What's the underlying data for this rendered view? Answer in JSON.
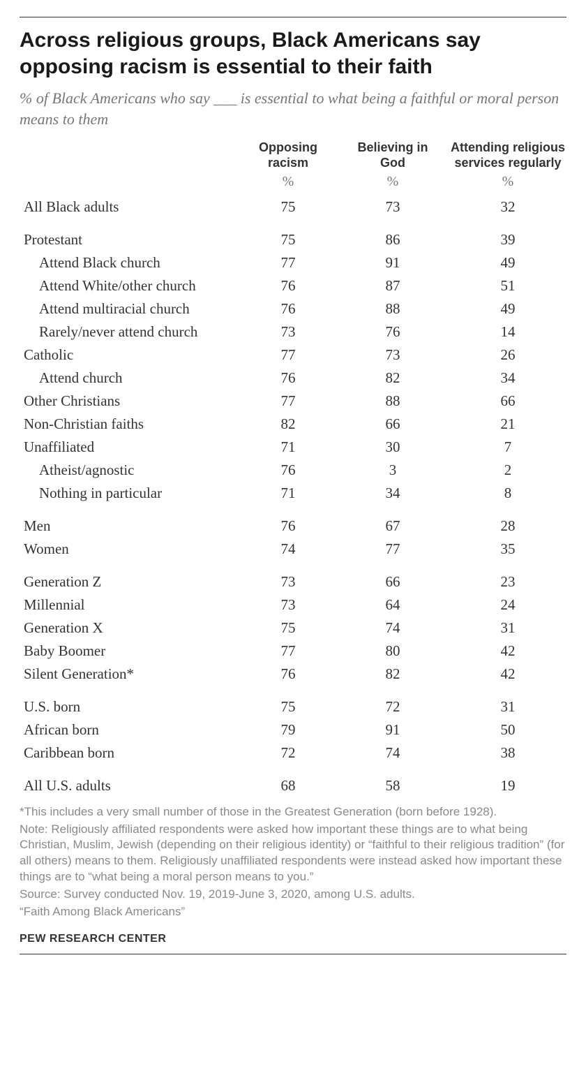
{
  "title": "Across religious groups, Black Americans say opposing racism is essential to their faith",
  "subtitle": "% of Black Americans who say ___ is essential to what being a faithful or moral person means to them",
  "columns": {
    "c1": "Opposing racism",
    "c2": "Believing in God",
    "c3": "Attending religious services regularly",
    "unit": "%"
  },
  "groups": [
    {
      "rows": [
        {
          "label": "All Black adults",
          "v": [
            "75",
            "73",
            "32"
          ]
        }
      ]
    },
    {
      "rows": [
        {
          "label": "Protestant",
          "v": [
            "75",
            "86",
            "39"
          ]
        },
        {
          "label": "Attend Black church",
          "indent": true,
          "v": [
            "77",
            "91",
            "49"
          ]
        },
        {
          "label": "Attend White/other church",
          "indent": true,
          "v": [
            "76",
            "87",
            "51"
          ]
        },
        {
          "label": "Attend multiracial church",
          "indent": true,
          "v": [
            "76",
            "88",
            "49"
          ]
        },
        {
          "label": "Rarely/never attend church",
          "indent": true,
          "v": [
            "73",
            "76",
            "14"
          ]
        },
        {
          "label": "Catholic",
          "v": [
            "77",
            "73",
            "26"
          ]
        },
        {
          "label": "Attend church",
          "indent": true,
          "v": [
            "76",
            "82",
            "34"
          ]
        },
        {
          "label": "Other Christians",
          "v": [
            "77",
            "88",
            "66"
          ]
        },
        {
          "label": "Non-Christian faiths",
          "v": [
            "82",
            "66",
            "21"
          ]
        },
        {
          "label": "Unaffiliated",
          "v": [
            "71",
            "30",
            "7"
          ]
        },
        {
          "label": "Atheist/agnostic",
          "indent": true,
          "v": [
            "76",
            "3",
            "2"
          ]
        },
        {
          "label": "Nothing in particular",
          "indent": true,
          "v": [
            "71",
            "34",
            "8"
          ]
        }
      ]
    },
    {
      "rows": [
        {
          "label": "Men",
          "v": [
            "76",
            "67",
            "28"
          ]
        },
        {
          "label": "Women",
          "v": [
            "74",
            "77",
            "35"
          ]
        }
      ]
    },
    {
      "rows": [
        {
          "label": "Generation Z",
          "v": [
            "73",
            "66",
            "23"
          ]
        },
        {
          "label": "Millennial",
          "v": [
            "73",
            "64",
            "24"
          ]
        },
        {
          "label": "Generation X",
          "v": [
            "75",
            "74",
            "31"
          ]
        },
        {
          "label": "Baby Boomer",
          "v": [
            "77",
            "80",
            "42"
          ]
        },
        {
          "label": "Silent Generation*",
          "v": [
            "76",
            "82",
            "42"
          ]
        }
      ]
    },
    {
      "rows": [
        {
          "label": "U.S. born",
          "v": [
            "75",
            "72",
            "31"
          ]
        },
        {
          "label": "African born",
          "v": [
            "79",
            "91",
            "50"
          ]
        },
        {
          "label": "Caribbean born",
          "v": [
            "72",
            "74",
            "38"
          ]
        }
      ]
    },
    {
      "rows": [
        {
          "label": "All U.S. adults",
          "v": [
            "68",
            "58",
            "19"
          ]
        }
      ]
    }
  ],
  "notes": {
    "n1": "*This includes a very small number of those in the Greatest Generation (born before 1928).",
    "n2": "Note: Religiously affiliated respondents were asked how important these things are to what being Christian, Muslim, Jewish (depending on their religious identity) or “faithful to their religious tradition” (for all others) means to them. Religiously unaffiliated respondents were instead asked how important these things are to “what being a moral person means to you.”",
    "n3": "Source: Survey conducted Nov. 19, 2019-June 3, 2020, among U.S. adults.",
    "n4": "“Faith Among Black Americans”"
  },
  "attribution": "PEW RESEARCH CENTER"
}
